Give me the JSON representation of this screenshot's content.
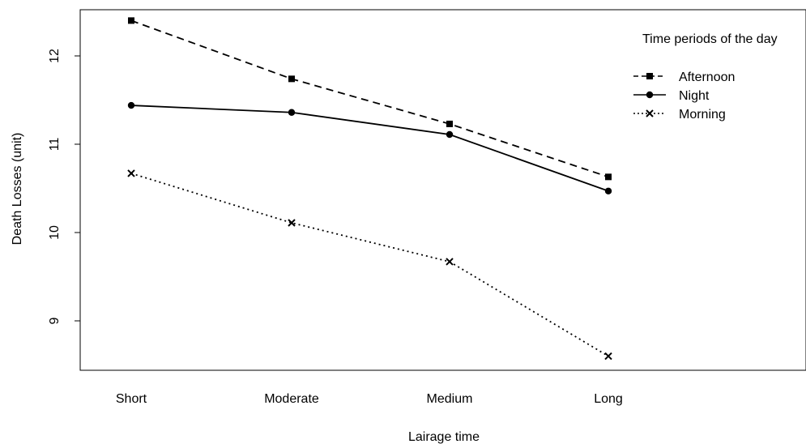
{
  "chart_data": {
    "type": "line",
    "title": "",
    "xlabel": "Lairage time",
    "ylabel": "Death Losses (unit)",
    "categories": [
      "Short",
      "Moderate",
      "Medium",
      "Long"
    ],
    "ylim": [
      8.5,
      12.6
    ],
    "yticks": [
      9,
      10,
      11,
      12
    ],
    "grid": false,
    "legend": {
      "title": "Time periods of the day",
      "placement": "top-right"
    },
    "series": [
      {
        "name": "Afternoon",
        "values": [
          12.4,
          11.74,
          11.23,
          10.63
        ],
        "line": "dashed",
        "marker": "square"
      },
      {
        "name": "Night",
        "values": [
          11.44,
          11.36,
          11.11,
          10.47
        ],
        "line": "solid",
        "marker": "circle"
      },
      {
        "name": "Morning",
        "values": [
          10.67,
          10.11,
          9.67,
          8.6
        ],
        "line": "dotted",
        "marker": "x"
      }
    ]
  }
}
